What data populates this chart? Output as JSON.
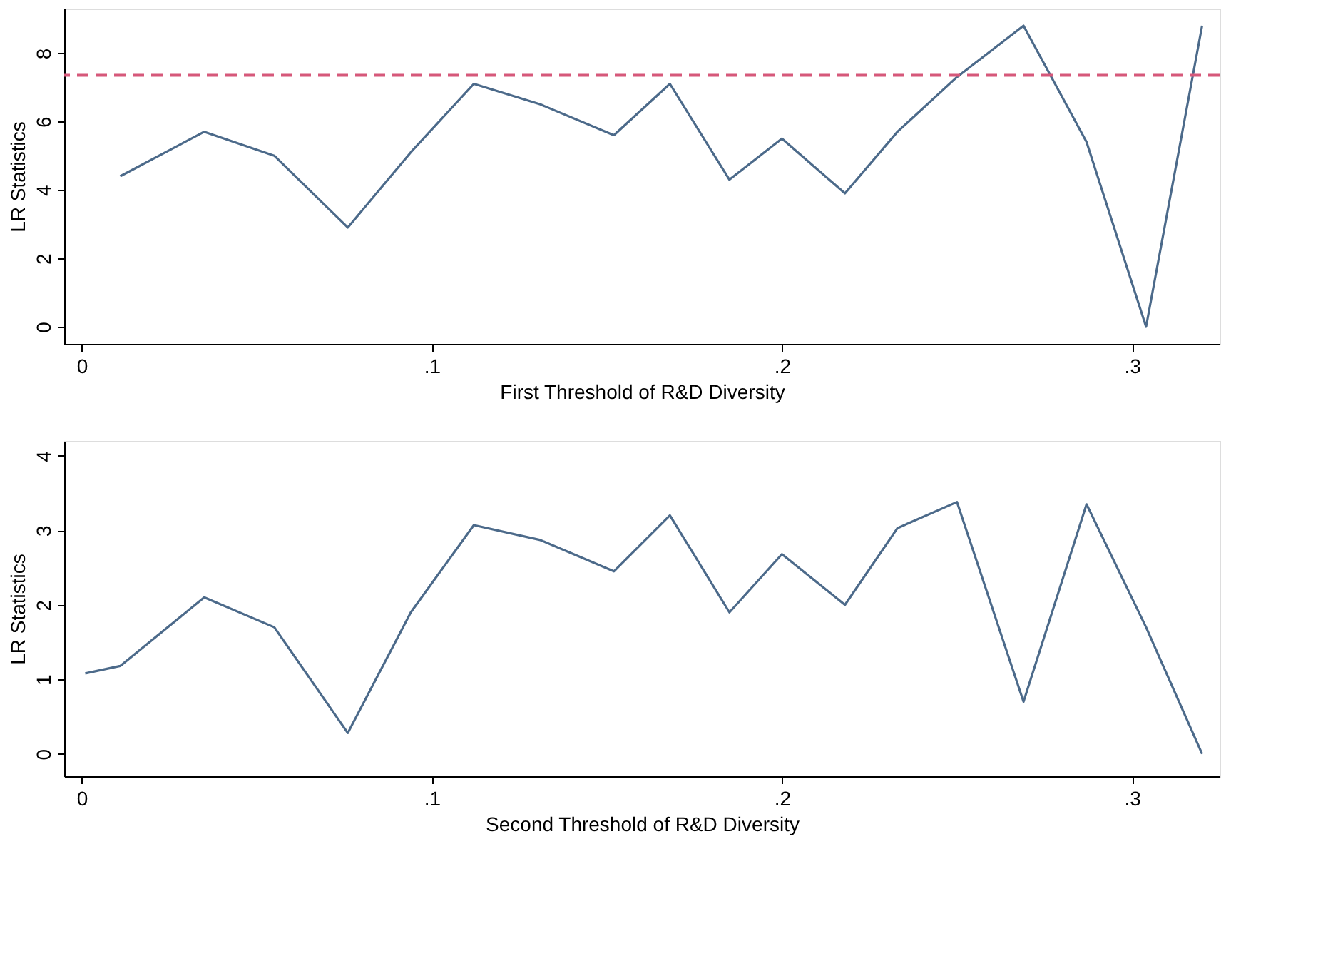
{
  "chart_data": [
    {
      "type": "line",
      "xlabel": "First Threshold of R&D Diversity",
      "ylabel": "LR Statistics",
      "x": [
        0.011,
        0.035,
        0.055,
        0.076,
        0.094,
        0.112,
        0.131,
        0.152,
        0.168,
        0.185,
        0.2,
        0.218,
        0.233,
        0.25,
        0.269,
        0.287,
        0.304,
        0.32
      ],
      "series": [
        {
          "color": "#4c6a8a",
          "values": [
            4.4,
            5.7,
            5.0,
            2.9,
            5.1,
            7.1,
            6.5,
            5.6,
            7.1,
            4.3,
            5.5,
            3.9,
            5.7,
            7.3,
            8.8,
            5.4,
            0,
            8.8
          ]
        }
      ],
      "ref_lines": [
        {
          "axis": "y",
          "value": 7.35,
          "color": "#d6587a",
          "line_style": "dashed"
        }
      ],
      "xlim": [
        -0.005,
        0.325
      ],
      "xticks": [
        {
          "value": 0,
          "label": "0"
        },
        {
          "value": 0.1,
          "label": ".1"
        },
        {
          "value": 0.2,
          "label": ".2"
        },
        {
          "value": 0.3,
          "label": ".3"
        }
      ],
      "ylim": [
        -0.5,
        9.3
      ],
      "yticks": [
        0,
        2,
        4,
        6,
        8
      ],
      "grid": false,
      "legend": false,
      "line_style": "solid",
      "marker": "none"
    },
    {
      "type": "line",
      "xlabel": "Second Threshold of R&D Diversity",
      "ylabel": "LR Statistics",
      "x": [
        0.001,
        0.011,
        0.035,
        0.055,
        0.076,
        0.094,
        0.112,
        0.131,
        0.152,
        0.168,
        0.185,
        0.2,
        0.218,
        0.233,
        0.25,
        0.269,
        0.287,
        0.304,
        0.32
      ],
      "series": [
        {
          "color": "#4c6a8a",
          "values": [
            1.08,
            1.18,
            2.1,
            1.7,
            0.28,
            1.9,
            3.07,
            2.87,
            2.45,
            3.2,
            1.9,
            2.68,
            2.0,
            3.03,
            3.38,
            0.7,
            3.35,
            1.7,
            0.0
          ]
        }
      ],
      "xlim": [
        -0.005,
        0.325
      ],
      "xticks": [
        {
          "value": 0,
          "label": "0"
        },
        {
          "value": 0.1,
          "label": ".1"
        },
        {
          "value": 0.2,
          "label": ".2"
        },
        {
          "value": 0.3,
          "label": ".3"
        }
      ],
      "ylim": [
        -0.3,
        4.2
      ],
      "yticks": [
        0,
        1,
        2,
        3,
        4
      ],
      "grid": false,
      "legend": false,
      "line_style": "solid",
      "marker": "none"
    }
  ]
}
